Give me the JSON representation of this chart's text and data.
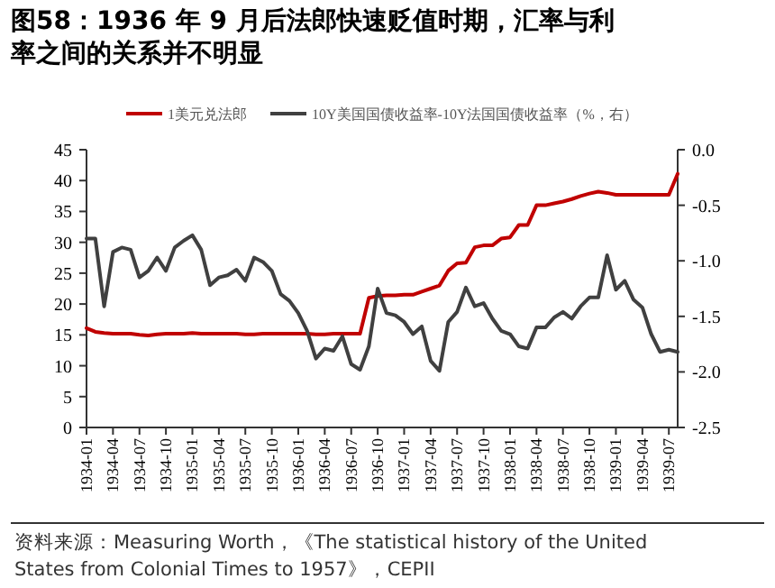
{
  "chart_data": {
    "type": "line",
    "title": "图58：1936 年 9 月后法郎快速贬值时期，汇率与利率之间的关系并不明显",
    "annotations": [
      "资料来源：Measuring Worth，《The statistical history of the United States from Colonial Times to 1957》，CEPII"
    ],
    "categories": [
      "1934-01",
      null,
      null,
      "1934-04",
      null,
      null,
      "1934-07",
      null,
      null,
      "1934-10",
      null,
      null,
      "1935-01",
      null,
      null,
      "1935-04",
      null,
      null,
      "1935-07",
      null,
      null,
      "1935-10",
      null,
      null,
      "1936-01",
      null,
      null,
      "1936-04",
      null,
      null,
      "1936-07",
      null,
      null,
      "1936-10",
      null,
      null,
      "1937-01",
      null,
      null,
      "1937-04",
      null,
      null,
      "1937-07",
      null,
      null,
      "1937-10",
      null,
      null,
      "1938-01",
      null,
      null,
      "1938-04",
      null,
      null,
      "1938-07",
      null,
      null,
      "1938-10",
      null,
      null,
      "1939-01",
      null,
      null,
      "1939-04",
      null,
      null,
      "1939-07",
      null
    ],
    "series": [
      {
        "name": "1美元兑法郎",
        "color": "#c00000",
        "values": [
          16.1,
          15.5,
          15.3,
          15.2,
          15.2,
          15.2,
          15.0,
          14.9,
          15.1,
          15.2,
          15.2,
          15.2,
          15.3,
          15.2,
          15.2,
          15.2,
          15.2,
          15.2,
          15.1,
          15.1,
          15.2,
          15.2,
          15.2,
          15.2,
          15.2,
          15.2,
          15.1,
          15.1,
          15.2,
          15.2,
          15.2,
          15.2,
          21.0,
          21.3,
          21.4,
          21.4,
          21.5,
          21.5,
          22.0,
          22.5,
          23.0,
          25.4,
          26.6,
          26.7,
          29.2,
          29.5,
          29.5,
          30.6,
          30.8,
          32.8,
          32.8,
          36.0,
          36.0,
          36.3,
          36.6,
          37.0,
          37.5,
          37.9,
          38.2,
          38.0,
          37.7,
          37.7,
          37.7,
          37.7,
          37.7,
          37.7,
          37.7,
          41.1
        ]
      },
      {
        "name": "10Y美国国债收益率-10Y法国国债收益率（%，右）",
        "color": "#404040",
        "axis": "y2",
        "values": [
          -0.8,
          -0.8,
          -1.41,
          -0.92,
          -0.88,
          -0.9,
          -1.15,
          -1.09,
          -0.97,
          -1.09,
          -0.88,
          -0.82,
          -0.77,
          -0.9,
          -1.22,
          -1.15,
          -1.13,
          -1.08,
          -1.18,
          -0.97,
          -1.01,
          -1.09,
          -1.3,
          -1.36,
          -1.47,
          -1.63,
          -1.88,
          -1.79,
          -1.81,
          -1.68,
          -1.93,
          -1.98,
          -1.77,
          -1.25,
          -1.47,
          -1.49,
          -1.55,
          -1.66,
          -1.59,
          -1.9,
          -1.99,
          -1.55,
          -1.46,
          -1.24,
          -1.41,
          -1.38,
          -1.52,
          -1.63,
          -1.66,
          -1.77,
          -1.79,
          -1.6,
          -1.6,
          -1.51,
          -1.46,
          -1.52,
          -1.41,
          -1.33,
          -1.33,
          -0.95,
          -1.26,
          -1.18,
          -1.35,
          -1.42,
          -1.66,
          -1.82,
          -1.8,
          -1.82
        ]
      }
    ],
    "ylim": [
      0,
      45
    ],
    "yticks": [
      0,
      5,
      10,
      15,
      20,
      25,
      30,
      35,
      40,
      45
    ],
    "y2lim": [
      -2.5,
      0
    ],
    "y2ticks": [
      {
        "value": 0,
        "label": "0.0"
      },
      -0.5,
      {
        "value": -1,
        "label": "-1.0"
      },
      -1.5,
      {
        "value": -2,
        "label": "-2.0"
      },
      -2.5
    ],
    "grid": false,
    "legend": "top",
    "marker": "none",
    "line_style": "solid"
  }
}
